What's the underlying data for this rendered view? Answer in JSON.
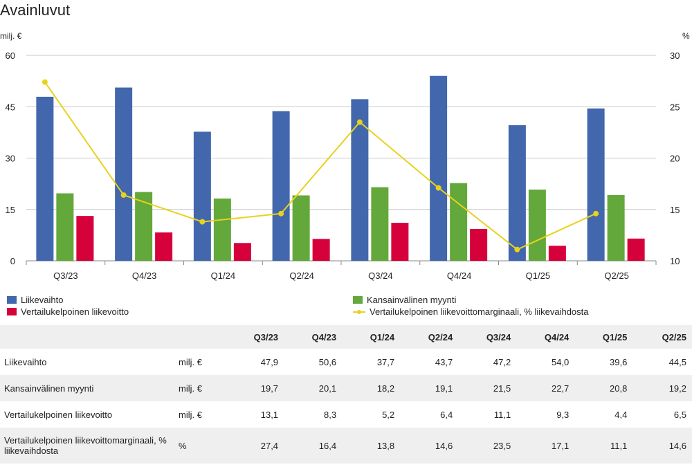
{
  "title": "Avainluvut",
  "colors": {
    "revenue": "#4267ad",
    "intl": "#63a83a",
    "ebit": "#d6003b",
    "margin": "#e8d21e"
  },
  "chart_data": {
    "type": "bar",
    "categories": [
      "Q3/23",
      "Q4/23",
      "Q1/24",
      "Q2/24",
      "Q3/24",
      "Q4/24",
      "Q1/25",
      "Q2/25"
    ],
    "left_axis": {
      "unit": "milj. €",
      "ylim": [
        0,
        60
      ],
      "ticks": [
        0,
        15,
        30,
        45,
        60
      ]
    },
    "right_axis": {
      "unit": "%",
      "ylim": [
        10,
        30
      ],
      "ticks": [
        10,
        15,
        20,
        25,
        30
      ]
    },
    "grid": true,
    "legend_position": "bottom",
    "series": [
      {
        "name": "Liikevaihto",
        "type": "bar",
        "axis": "left",
        "values": [
          47.9,
          50.6,
          37.7,
          43.7,
          47.2,
          54.0,
          39.6,
          44.5
        ]
      },
      {
        "name": "Kansainvälinen myynti",
        "type": "bar",
        "axis": "left",
        "values": [
          19.7,
          20.1,
          18.2,
          19.1,
          21.5,
          22.7,
          20.8,
          19.2
        ]
      },
      {
        "name": "Vertailukelpoinen liikevoitto",
        "type": "bar",
        "axis": "left",
        "values": [
          13.1,
          8.3,
          5.2,
          6.4,
          11.1,
          9.3,
          4.4,
          6.5
        ]
      },
      {
        "name": "Vertailukelpoinen liikevoittomarginaali, % liikevaihdosta",
        "type": "line",
        "axis": "right",
        "values": [
          27.4,
          16.4,
          13.8,
          14.6,
          23.5,
          17.1,
          11.1,
          14.6
        ]
      }
    ]
  },
  "legend": {
    "revenue": "Liikevaihto",
    "intl": "Kansainvälinen myynti",
    "ebit": "Vertailukelpoinen liikevoitto",
    "margin": "Vertailukelpoinen liikevoittomarginaali, % liikevaihdosta"
  },
  "table": {
    "headers": [
      "Q3/23",
      "Q4/23",
      "Q1/24",
      "Q2/24",
      "Q3/24",
      "Q4/24",
      "Q1/25",
      "Q2/25"
    ],
    "rows": [
      {
        "label": "Liikevaihto",
        "unit": "milj. €",
        "values": [
          "47,9",
          "50,6",
          "37,7",
          "43,7",
          "47,2",
          "54,0",
          "39,6",
          "44,5"
        ]
      },
      {
        "label": "Kansainvälinen myynti",
        "unit": "milj. €",
        "values": [
          "19,7",
          "20,1",
          "18,2",
          "19,1",
          "21,5",
          "22,7",
          "20,8",
          "19,2"
        ]
      },
      {
        "label": "Vertailukelpoinen liikevoitto",
        "unit": "milj. €",
        "values": [
          "13,1",
          "8,3",
          "5,2",
          "6,4",
          "11,1",
          "9,3",
          "4,4",
          "6,5"
        ]
      },
      {
        "label": "Vertailukelpoinen liikevoittomarginaali, % liikevaihdosta",
        "unit": "%",
        "values": [
          "27,4",
          "16,4",
          "13,8",
          "14,6",
          "23,5",
          "17,1",
          "11,1",
          "14,6"
        ]
      }
    ]
  }
}
